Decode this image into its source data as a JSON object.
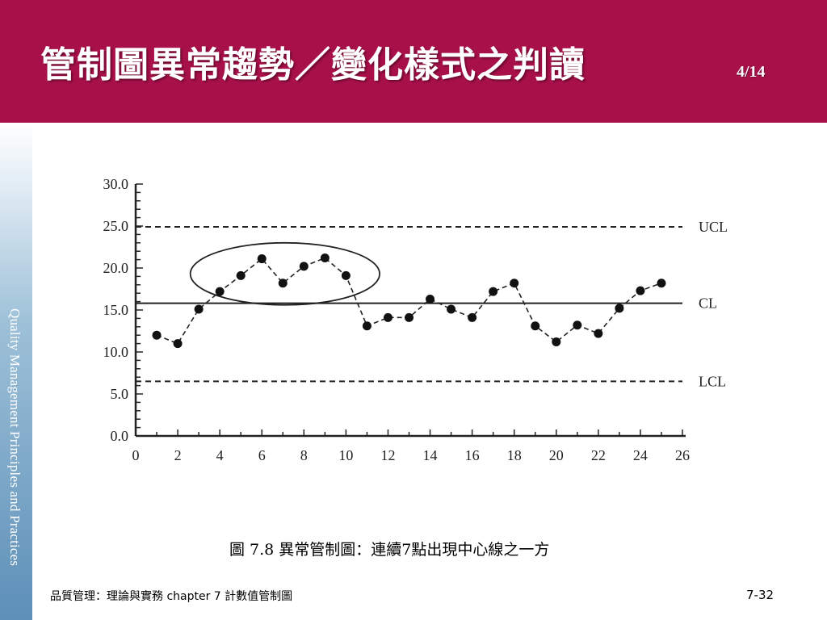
{
  "slide": {
    "title": "管制圖異常趨勢／變化樣式之判讀",
    "page_counter": "4/14",
    "sidebar_text": "Quality Management Principles and Practices",
    "caption": "圖 7.8  異常管制圖：連續7點出現中心線之一方",
    "footer_left": "品質管理：理論與實務    chapter 7    計數值管制圖",
    "footer_right": "7-32",
    "header_color": "#a8104a"
  },
  "chart_data": {
    "type": "line",
    "x": [
      1,
      2,
      3,
      4,
      5,
      6,
      7,
      8,
      9,
      10,
      11,
      12,
      13,
      14,
      15,
      16,
      17,
      18,
      19,
      20,
      21,
      22,
      23,
      24,
      25
    ],
    "series": [
      {
        "values": [
          12.0,
          11.0,
          15.1,
          17.2,
          19.1,
          21.1,
          18.2,
          20.2,
          21.2,
          19.1,
          13.1,
          14.1,
          14.1,
          16.3,
          15.1,
          14.1,
          17.2,
          18.2,
          13.1,
          11.2,
          13.2,
          12.2,
          15.2,
          17.3,
          18.2
        ]
      }
    ],
    "xlim": [
      0,
      26
    ],
    "ylim": [
      0,
      30
    ],
    "x_ticks": [
      "0",
      "2",
      "4",
      "6",
      "8",
      "10",
      "12",
      "14",
      "16",
      "18",
      "20",
      "22",
      "24",
      "26"
    ],
    "y_ticks": [
      "0.0",
      "5.0",
      "10.0",
      "15.0",
      "20.0",
      "25.0",
      "30.0"
    ],
    "control_lines": [
      {
        "label": "UCL",
        "value": 24.9,
        "style": "dashed"
      },
      {
        "label": "CL",
        "value": 15.8,
        "style": "solid"
      },
      {
        "label": "LCL",
        "value": 6.5,
        "style": "dashed"
      }
    ],
    "highlight_ellipse": {
      "x_range": [
        2.6,
        11.6
      ],
      "y_range": [
        15.6,
        23.0
      ]
    },
    "xlabel": "",
    "ylabel": "",
    "grid": false
  }
}
